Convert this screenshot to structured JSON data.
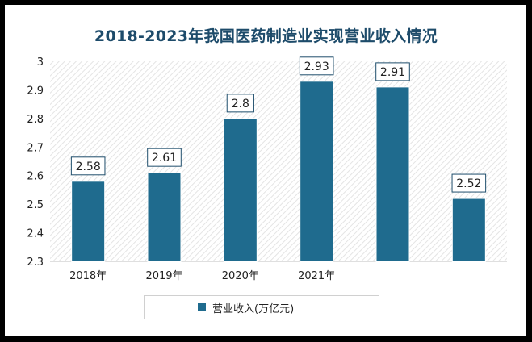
{
  "chart_data": {
    "type": "bar",
    "title": "2018-2023年我国医药制造业实现营业收入情况",
    "categories": [
      "2018年",
      "2019年",
      "2020年",
      "2021年",
      "",
      ""
    ],
    "series": [
      {
        "name": "营业收入(万亿元)",
        "values": [
          2.58,
          2.61,
          2.8,
          2.93,
          2.91,
          2.52
        ]
      }
    ],
    "data_labels": [
      "2.58",
      "2.61",
      "2.8",
      "2.93",
      "2.91",
      "2.52"
    ],
    "ylim": [
      2.3,
      3.0
    ],
    "yticks": [
      "2.3",
      "2.4",
      "2.5",
      "2.6",
      "2.7",
      "2.8",
      "2.9",
      "3"
    ],
    "xlabel": "",
    "ylabel": "",
    "grid": false,
    "plot_background": "hatched",
    "legend_position": "bottom",
    "bar_color": "#1f6b8e",
    "title_color": "#1d4b6a"
  }
}
